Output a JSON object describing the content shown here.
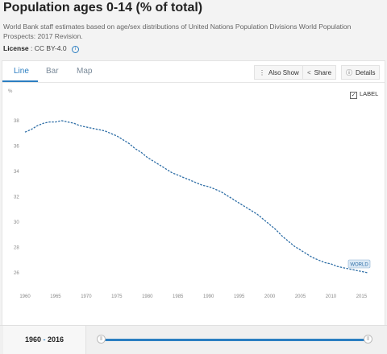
{
  "header": {
    "title": "Population ages 0-14 (% of total)",
    "source": "World Bank staff estimates based on age/sex distributions of United Nations Population Divisions World Population Prospects: 2017 Revision.",
    "license_label": "License",
    "license_value": ": CC BY-4.0"
  },
  "tabs": [
    {
      "label": "Line",
      "active": true
    },
    {
      "label": "Bar",
      "active": false
    },
    {
      "label": "Map",
      "active": false
    }
  ],
  "toolbar": {
    "also_show": "Also Show",
    "share": "Share",
    "details": "Details"
  },
  "label_toggle": {
    "label": "LABEL",
    "checked": true
  },
  "range": {
    "start": "1960",
    "sep": "-",
    "end": "2016"
  },
  "colors": {
    "accent": "#2b7ec1",
    "line": "#2e6ea6"
  },
  "chart_data": {
    "type": "line",
    "ylabel": "%",
    "xlim": [
      1960,
      2016
    ],
    "ylim": [
      25,
      39
    ],
    "x_ticks": [
      1960,
      1965,
      1970,
      1975,
      1980,
      1985,
      1990,
      1995,
      2000,
      2005,
      2010,
      2015
    ],
    "y_ticks": [
      26,
      28,
      30,
      32,
      34,
      36,
      38
    ],
    "grid": false,
    "series": [
      {
        "name": "WORLD",
        "x": [
          1960,
          1961,
          1962,
          1963,
          1964,
          1965,
          1966,
          1967,
          1968,
          1969,
          1970,
          1971,
          1972,
          1973,
          1974,
          1975,
          1976,
          1977,
          1978,
          1979,
          1980,
          1981,
          1982,
          1983,
          1984,
          1985,
          1986,
          1987,
          1988,
          1989,
          1990,
          1991,
          1992,
          1993,
          1994,
          1995,
          1996,
          1997,
          1998,
          1999,
          2000,
          2001,
          2002,
          2003,
          2004,
          2005,
          2006,
          2007,
          2008,
          2009,
          2010,
          2011,
          2012,
          2013,
          2014,
          2015,
          2016
        ],
        "values": [
          37.1,
          37.3,
          37.6,
          37.8,
          37.9,
          37.9,
          38.0,
          37.9,
          37.8,
          37.6,
          37.5,
          37.4,
          37.3,
          37.2,
          37.0,
          36.8,
          36.5,
          36.2,
          35.8,
          35.5,
          35.1,
          34.8,
          34.5,
          34.2,
          33.9,
          33.7,
          33.5,
          33.3,
          33.1,
          32.9,
          32.8,
          32.6,
          32.4,
          32.1,
          31.8,
          31.5,
          31.2,
          30.9,
          30.6,
          30.2,
          29.8,
          29.4,
          28.9,
          28.5,
          28.1,
          27.8,
          27.5,
          27.2,
          27.0,
          26.8,
          26.7,
          26.5,
          26.4,
          26.3,
          26.2,
          26.1,
          26.0
        ]
      }
    ],
    "series_label": "WORLD"
  }
}
